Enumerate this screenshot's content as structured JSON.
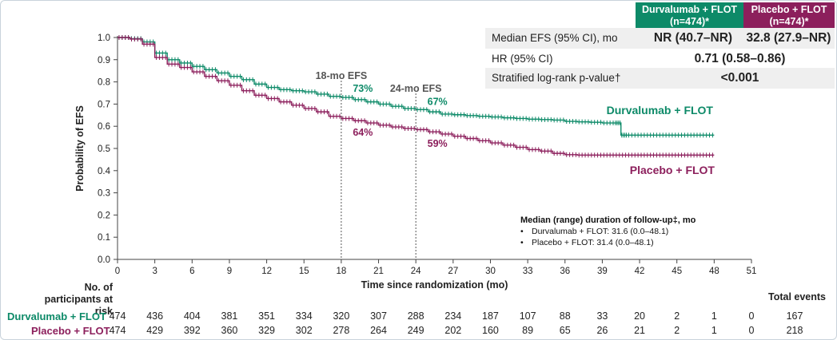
{
  "header": {
    "durvalumab": "Durvalumab + FLOT\n(n=474)*",
    "placebo": "Placebo + FLOT\n(n=474)*"
  },
  "stats": {
    "median_label": "Median EFS (95% CI), mo",
    "median_durva": "NR (40.7–NR)",
    "median_placebo": "32.8 (27.9–NR)",
    "hr_label": "HR (95% CI)",
    "hr_value": "0.71 (0.58–0.86)",
    "p_label": "Stratified log-rank p-value†",
    "p_value": "<0.001"
  },
  "chart_data": {
    "type": "line",
    "title": "",
    "xlabel": "Time since randomization (mo)",
    "ylabel": "Probability of EFS",
    "xlim": [
      0,
      51
    ],
    "ylim": [
      0,
      1.0
    ],
    "x_ticks": [
      0,
      3,
      6,
      9,
      12,
      15,
      18,
      21,
      24,
      27,
      30,
      33,
      36,
      39,
      42,
      45,
      48,
      51
    ],
    "y_ticks": [
      "0.0",
      "0.1",
      "0.2",
      "0.3",
      "0.4",
      "0.5",
      "0.6",
      "0.7",
      "0.8",
      "0.9",
      "1.0"
    ],
    "series": [
      {
        "name": "Durvalumab + FLOT",
        "color": "#0d8a68",
        "x": [
          0,
          1,
          2,
          3,
          4,
          5,
          6,
          7,
          8,
          9,
          10,
          11,
          12,
          13,
          14,
          15,
          16,
          17,
          18,
          19,
          20,
          21,
          22,
          23,
          24,
          25,
          26,
          27,
          28,
          29,
          30,
          31,
          32,
          33,
          34,
          35,
          36,
          37,
          38,
          39,
          40,
          40.5,
          41,
          42,
          43,
          44,
          45,
          46,
          47,
          48
        ],
        "y": [
          1.0,
          0.995,
          0.98,
          0.93,
          0.9,
          0.885,
          0.87,
          0.855,
          0.84,
          0.825,
          0.81,
          0.79,
          0.775,
          0.765,
          0.76,
          0.755,
          0.745,
          0.735,
          0.73,
          0.72,
          0.71,
          0.7,
          0.69,
          0.68,
          0.675,
          0.665,
          0.655,
          0.652,
          0.648,
          0.645,
          0.642,
          0.638,
          0.635,
          0.632,
          0.63,
          0.628,
          0.622,
          0.62,
          0.618,
          0.615,
          0.615,
          0.56,
          0.56,
          0.56,
          0.56,
          0.56,
          0.56,
          0.56,
          0.56,
          0.56
        ]
      },
      {
        "name": "Placebo + FLOT",
        "color": "#8c1f5c",
        "x": [
          0,
          1,
          2,
          3,
          4,
          5,
          6,
          7,
          8,
          9,
          10,
          11,
          12,
          13,
          14,
          15,
          16,
          17,
          18,
          19,
          20,
          21,
          22,
          23,
          24,
          25,
          26,
          27,
          28,
          29,
          30,
          31,
          32,
          33,
          34,
          35,
          36,
          37,
          38,
          39,
          40,
          41,
          42,
          43,
          44,
          45,
          46,
          47,
          48
        ],
        "y": [
          1.0,
          0.993,
          0.97,
          0.91,
          0.88,
          0.865,
          0.845,
          0.825,
          0.805,
          0.785,
          0.76,
          0.74,
          0.725,
          0.71,
          0.695,
          0.68,
          0.665,
          0.645,
          0.635,
          0.625,
          0.615,
          0.605,
          0.597,
          0.59,
          0.585,
          0.575,
          0.565,
          0.555,
          0.545,
          0.535,
          0.525,
          0.515,
          0.505,
          0.495,
          0.488,
          0.478,
          0.472,
          0.47,
          0.47,
          0.47,
          0.47,
          0.47,
          0.47,
          0.47,
          0.47,
          0.47,
          0.47,
          0.47,
          0.47
        ]
      }
    ],
    "series_labels": [
      "Durvalumab + FLOT",
      "Placebo + FLOT"
    ],
    "annotations": {
      "efs18_label": "18-mo EFS",
      "efs18_x": 18,
      "efs18_durva": "73%",
      "efs18_placebo": "64%",
      "efs24_label": "24-mo EFS",
      "efs24_x": 24,
      "efs24_durva": "67%",
      "efs24_placebo": "59%"
    },
    "followup": {
      "title": "Median (range) duration of follow-up‡, mo",
      "durva": "Durvalumab + FLOT: 31.6 (0.0–48.1)",
      "placebo": "Placebo + FLOT: 31.4 (0.0–48.1)"
    }
  },
  "risk_table": {
    "title": "No. of\nparticipants at risk",
    "durva_label": "Durvalumab + FLOT",
    "placebo_label": "Placebo + FLOT",
    "total_events_title": "Total events",
    "durva": [
      "474",
      "436",
      "404",
      "381",
      "351",
      "334",
      "320",
      "307",
      "288",
      "234",
      "187",
      "107",
      "88",
      "33",
      "20",
      "2",
      "1",
      "0"
    ],
    "placebo": [
      "474",
      "429",
      "392",
      "360",
      "329",
      "302",
      "278",
      "264",
      "249",
      "202",
      "160",
      "89",
      "65",
      "26",
      "21",
      "2",
      "1",
      "0"
    ],
    "durva_total": "167",
    "placebo_total": "218"
  }
}
